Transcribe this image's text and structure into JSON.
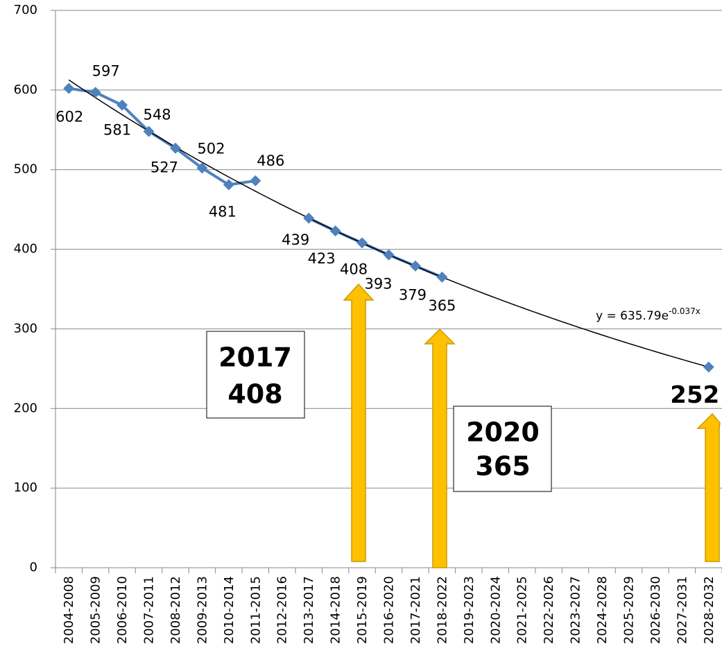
{
  "chart_data": {
    "type": "line",
    "categories": [
      "2004-2008",
      "2005-2009",
      "2006-2010",
      "2007-2011",
      "2008-2012",
      "2009-2013",
      "2010-2014",
      "2011-2015",
      "2012-2016",
      "2013-2017",
      "2014-2018",
      "2015-2019",
      "2016-2020",
      "2017-2021",
      "2018-2022",
      "2019-2023",
      "2020-2024",
      "2021-2025",
      "2022-2026",
      "2023-2027",
      "2024-2028",
      "2025-2029",
      "2026-2030",
      "2027-2031",
      "2028-2032"
    ],
    "series": [
      {
        "color": "#4f81bd",
        "values": [
          602,
          597,
          581,
          548,
          527,
          502,
          481,
          486,
          null,
          439,
          423,
          408,
          393,
          379,
          365,
          null,
          null,
          null,
          null,
          null,
          null,
          null,
          null,
          null,
          252
        ]
      }
    ],
    "ylim": [
      0,
      700
    ],
    "yticks": [
      0,
      100,
      200,
      300,
      400,
      500,
      600,
      700
    ],
    "grid": true,
    "trendline": {
      "type": "exponential",
      "a": 635.79,
      "b": -0.037,
      "color": "#000000",
      "label": "y = 635.79e",
      "label_exp": "-0.037x"
    },
    "annotations": [
      {
        "lines": [
          "2017",
          "408"
        ]
      },
      {
        "lines": [
          "2020",
          "365"
        ]
      }
    ]
  }
}
